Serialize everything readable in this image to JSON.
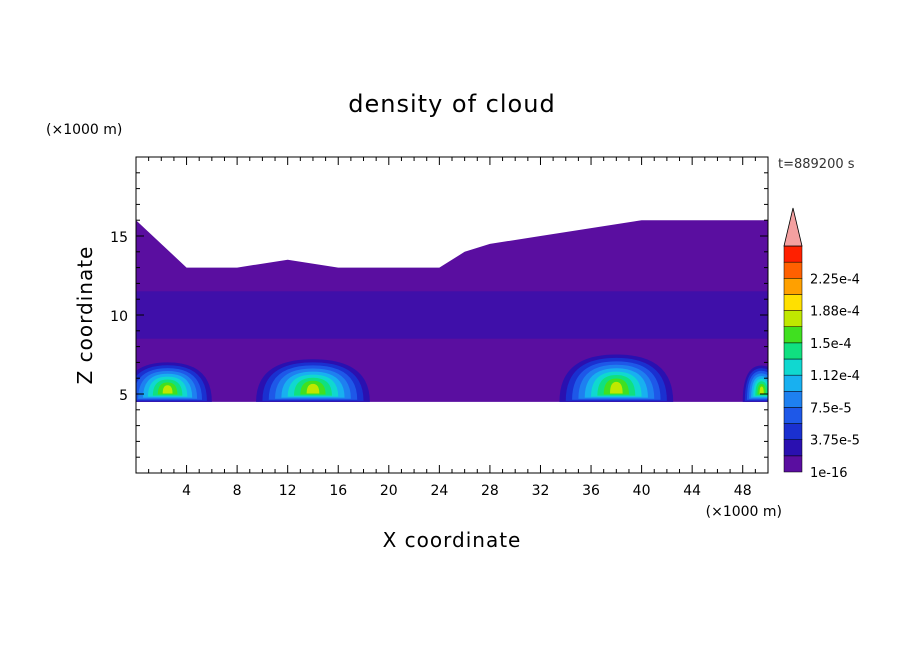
{
  "chart_data": {
    "type": "heatmap",
    "title": "density of cloud",
    "xlabel": "X coordinate",
    "ylabel": "Z coordinate",
    "x_unit_label": "(×1000 m)",
    "y_unit_label": "(×1000 m)",
    "time_label": "t=889200 s",
    "xlim": [
      0,
      50
    ],
    "ylim": [
      0,
      20
    ],
    "x_ticks": [
      4,
      8,
      12,
      16,
      20,
      24,
      28,
      32,
      36,
      40,
      44,
      48
    ],
    "y_ticks": [
      5,
      10,
      15
    ],
    "colorbar": {
      "labels": [
        "1e-16",
        "3.75e-5",
        "7.5e-5",
        "1.12e-4",
        "1.5e-4",
        "1.88e-4",
        "2.25e-4"
      ],
      "levels": [
        1e-16,
        1.875e-05,
        3.75e-05,
        5.625e-05,
        7.5e-05,
        9.375e-05,
        0.0001125,
        0.00013125,
        0.00015,
        0.00016875,
        0.0001875,
        0.00020625,
        0.000225,
        0.00024375
      ],
      "colors": [
        "#5a0ea0",
        "#2a10b0",
        "#1a30d0",
        "#1e58e8",
        "#1e80f0",
        "#18b0f0",
        "#10d8d0",
        "#10e080",
        "#40e020",
        "#c0e800",
        "#ffe000",
        "#ffa000",
        "#ff6000",
        "#ff2000"
      ],
      "over_color": "#f4a0a0"
    },
    "cloud_layer": {
      "z_base": 4.5,
      "z_top": [
        16,
        13,
        13,
        13.5,
        13,
        13,
        13,
        14,
        14.5,
        15,
        15.5,
        16,
        16,
        16
      ],
      "x_top": [
        0,
        4,
        8,
        12,
        16,
        20,
        24,
        26,
        28,
        32,
        36,
        40,
        44,
        50
      ]
    },
    "cells": [
      {
        "x_center": 2.5,
        "x_half": 3.5,
        "z_top": 7
      },
      {
        "x_center": 14,
        "x_half": 4.5,
        "z_top": 7.2
      },
      {
        "x_center": 38,
        "x_half": 4.5,
        "z_top": 7.5
      },
      {
        "x_center": 49.5,
        "x_half": 1.5,
        "z_top": 6.8
      }
    ]
  }
}
